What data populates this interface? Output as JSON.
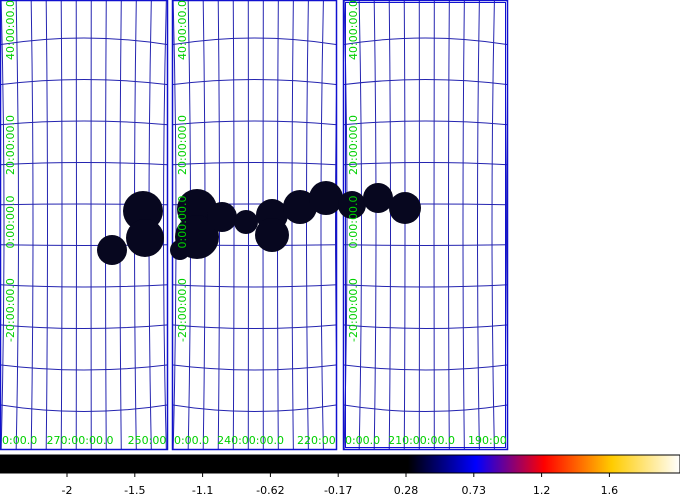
{
  "panels": [
    {
      "y_labels": [
        "40:00:00.0",
        "20:00:00.0",
        "0:00:00.0",
        "-20:00:00.0"
      ],
      "x_labels": [
        "0:00.0",
        "270:00:00.0",
        "250:00"
      ]
    },
    {
      "y_labels": [
        "40:00:00.0",
        "20:00:00.0",
        "0:00:00.0",
        "-20:00:00.0"
      ],
      "x_labels": [
        "0:00.0",
        "240:00:00.0",
        "220:00"
      ]
    },
    {
      "y_labels": [
        "40:00:00.0",
        "20:00:00.0",
        "0:00:00.0",
        "-20:00:00.0"
      ],
      "x_labels": [
        "0:00.0",
        "210:00:00.0",
        "190:00"
      ]
    }
  ],
  "colorbar": {
    "ticks": [
      -2,
      -1.5,
      -1.1,
      -0.62,
      -0.17,
      0.28,
      0.73,
      1.2,
      1.6
    ]
  }
}
